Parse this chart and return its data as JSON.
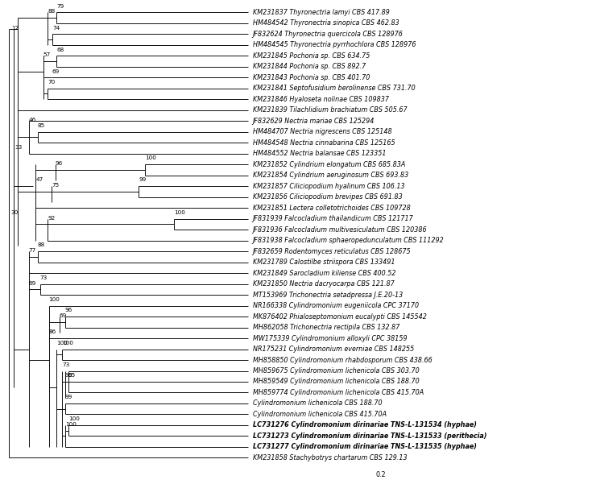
{
  "figsize": [
    7.4,
    5.96
  ],
  "dpi": 100,
  "taxa": [
    {
      "y": 1,
      "label": "KM231837 Thyronectria lamyi CBS 417.89",
      "bold": false
    },
    {
      "y": 2,
      "label": "HM484542 Thyronectria sinopica CBS 462.83",
      "bold": false
    },
    {
      "y": 3,
      "label": "JF832624 Thyronectria quercicola CBS 128976",
      "bold": false
    },
    {
      "y": 4,
      "label": "HM484545 Thyronectria pyrrhochlora CBS 128976",
      "bold": false
    },
    {
      "y": 5,
      "label": "KM231845 Pochonia sp. CBS 634.75",
      "bold": false
    },
    {
      "y": 6,
      "label": "KM231844 Pochonia sp. CBS 892.7",
      "bold": false
    },
    {
      "y": 7,
      "label": "KM231843 Pochonia sp. CBS 401.70",
      "bold": false
    },
    {
      "y": 8,
      "label": "KM231841 Septofusidium berolinense CBS 731.70",
      "bold": false
    },
    {
      "y": 9,
      "label": "KM231846 Hyaloseta nolinae CBS 109837",
      "bold": false
    },
    {
      "y": 10,
      "label": "KM231839 Tilachlidium brachiatum CBS 505.67",
      "bold": false
    },
    {
      "y": 11,
      "label": "JF832629 Nectria mariae CBS 125294",
      "bold": false
    },
    {
      "y": 12,
      "label": "HM484707 Nectria nigrescens CBS 125148",
      "bold": false
    },
    {
      "y": 13,
      "label": "HM484548 Nectria cinnabarina CBS 125165",
      "bold": false
    },
    {
      "y": 14,
      "label": "HM484552 Nectria balansae CBS 123351",
      "bold": false
    },
    {
      "y": 15,
      "label": "KM231852 Cylindrium elongatum CBS 685.83A",
      "bold": false
    },
    {
      "y": 16,
      "label": "KM231854 Cylindrium aeruginosum CBS 693.83",
      "bold": false
    },
    {
      "y": 17,
      "label": "KM231857 Ciliciopodium hyalinum CBS 106.13",
      "bold": false
    },
    {
      "y": 18,
      "label": "KM231856 Ciliciopodium brevipes CBS 691.83",
      "bold": false
    },
    {
      "y": 19,
      "label": "KM231851 Lectera colletotrichoides CBS 109728",
      "bold": false
    },
    {
      "y": 20,
      "label": "JF831939 Falcocladium thailandicum CBS 121717",
      "bold": false
    },
    {
      "y": 21,
      "label": "JF831936 Falcocladium multivesiculatum CBS 120386",
      "bold": false
    },
    {
      "y": 22,
      "label": "JF831938 Falcocladium sphaeropedunculatum CBS 111292",
      "bold": false
    },
    {
      "y": 23,
      "label": "JF832659 Rodentomyces reticulatus CBS 128675",
      "bold": false
    },
    {
      "y": 24,
      "label": "KM231789 Calostilbe striispora CBS 133491",
      "bold": false
    },
    {
      "y": 25,
      "label": "KM231849 Sarocladium kiliense CBS 400.52",
      "bold": false
    },
    {
      "y": 26,
      "label": "KM231850 Nectria dacryocarpa CBS 121.87",
      "bold": false
    },
    {
      "y": 27,
      "label": "MT153969 Trichonectria setadpressa J.E.20-13",
      "bold": false
    },
    {
      "y": 28,
      "label": "NR166338 Cylindromonium eugeniicola CPC 37170",
      "bold": false
    },
    {
      "y": 29,
      "label": "MK876402 Phialoseptomonium eucalypti CBS 145542",
      "bold": false
    },
    {
      "y": 30,
      "label": "MH862058 Trichonectria rectipila CBS 132.87",
      "bold": false
    },
    {
      "y": 31,
      "label": "MW175339 Cylindromonium alloxyli CPC 38159",
      "bold": false
    },
    {
      "y": 32,
      "label": "NR175231 Cylindromonium everniae CBS 148255",
      "bold": false
    },
    {
      "y": 33,
      "label": "MH858850 Cylindromonium rhabdosporum CBS 438.66",
      "bold": false
    },
    {
      "y": 34,
      "label": "MH859675 Cylindromonium lichenicola CBS 303.70",
      "bold": false
    },
    {
      "y": 35,
      "label": "MH859549 Cylindromonium lichenicola CBS 188.70",
      "bold": false
    },
    {
      "y": 36,
      "label": "MH859774 Cylindromonium lichenicola CBS 415.70A",
      "bold": false
    },
    {
      "y": 37,
      "label": "Cylindromonium lichenicola CBS 188.70",
      "bold": false
    },
    {
      "y": 38,
      "label": "Cylindromonium lichenicola CBS 415.70A",
      "bold": false
    },
    {
      "y": 39,
      "label": "LC731276 Cylindromonium dirinariae TNS-L-131534 (hyphae)",
      "bold": true
    },
    {
      "y": 40,
      "label": "LC731273 Cylindromonium dirinariae TNS-L-131533 (perithecia)",
      "bold": true
    },
    {
      "y": 41,
      "label": "LC731277 Cylindromonium dirinariae TNS-L-131535 (hyphae)",
      "bold": true
    },
    {
      "y": 42,
      "label": "KM231858 Stachybotrys chartarum CBS 129.13",
      "bold": false
    }
  ]
}
